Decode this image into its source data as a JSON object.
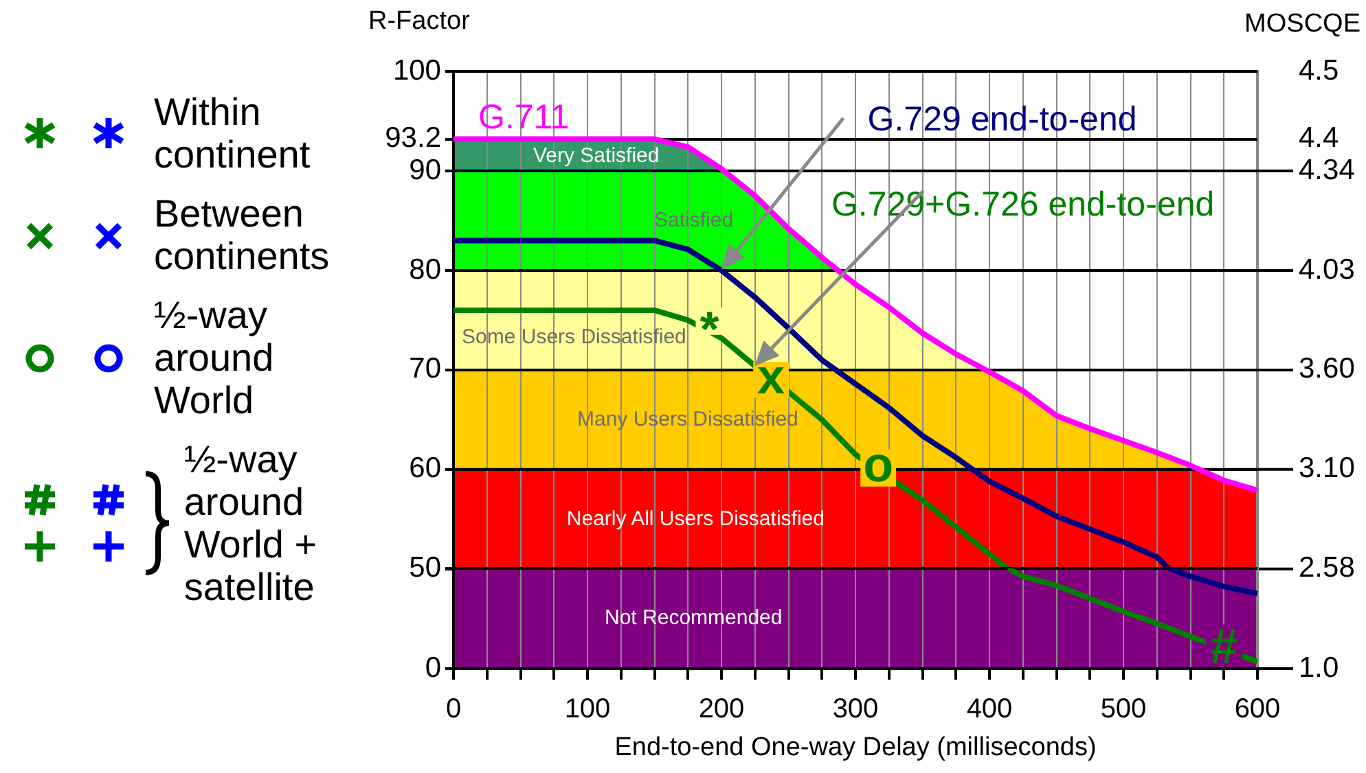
{
  "chart_data": [
    {
      "type": "line",
      "ylabel": "R-Factor",
      "y2label": "MOSCQE",
      "annotations": [
        "3.10",
        "3.60",
        "4.03",
        "4.34",
        "4.4",
        "4.5",
        "Within continent",
        "Between continents",
        "½-way around World",
        "½-way around World + satellite",
        {
          "text": "*",
          "x": 191,
          "y": 73.8
        },
        {
          "text": "x",
          "x": 237,
          "y": 69
        },
        {
          "text": "o",
          "x": 317,
          "y": 60.2
        }
      ],
      "xlim": [
        0,
        600
      ],
      "xticks": [
        0,
        25,
        50,
        75,
        100,
        125,
        150,
        175,
        200,
        225,
        250,
        275,
        300,
        325,
        350,
        375,
        400,
        425,
        450,
        475,
        500,
        525,
        550,
        575,
        600
      ],
      "ylim": [
        50,
        100
      ],
      "yticks": [
        {
          "value": 50,
          "label": null
        },
        60,
        70,
        80,
        90,
        93.2,
        100
      ],
      "tick_labels": "y",
      "grid": true,
      "bands": [
        {
          "axis": "y",
          "from": 90,
          "to": 93.2,
          "label": "Very Satisfied",
          "color": "#339966"
        },
        {
          "axis": "y",
          "from": 80,
          "to": 90,
          "label": "Satisfied",
          "color": "#00ff00"
        },
        {
          "axis": "y",
          "from": 70,
          "to": 80,
          "label": "Some Users Dissatisfied",
          "color": "#ffff99"
        },
        {
          "axis": "y",
          "from": 60,
          "to": 70,
          "label": "Many Users Dissatisfied",
          "color": "#ffcc00"
        },
        {
          "axis": "y",
          "from": 50,
          "to": 60,
          "label": "Nearly All Users Dissatisfied",
          "color": "#ff0000"
        }
      ],
      "series": [
        {
          "name": "G.711",
          "color": "#ff00ff",
          "x": [
            0,
            150,
            175,
            200,
            225,
            250,
            275,
            300,
            325,
            350,
            375,
            400,
            425,
            450,
            475,
            500,
            525,
            550,
            575,
            600
          ],
          "values": [
            93.2,
            93.2,
            92.4,
            90.2,
            87.5,
            84.2,
            81.3,
            78.6,
            76.3,
            73.7,
            71.6,
            69.8,
            67.9,
            65.4,
            64.1,
            62.9,
            61.7,
            60.4,
            58.9,
            57.9
          ]
        },
        {
          "name": "G.729 end-to-end",
          "color": "#000080",
          "x": [
            0,
            150,
            175,
            200,
            225,
            250,
            275,
            300,
            325,
            350,
            375,
            400,
            425,
            450,
            475,
            500,
            525,
            534
          ],
          "values": [
            83,
            83,
            82.1,
            80,
            77.3,
            74.2,
            71,
            68.6,
            66.2,
            63.4,
            61.2,
            58.8,
            57.1,
            55.3,
            54,
            52.7,
            51.2,
            50
          ]
        },
        {
          "name": "G.729+G.726 end-to-end",
          "color": "#008000",
          "x": [
            0,
            150,
            175,
            200,
            225,
            250,
            275,
            300,
            350,
            375,
            400,
            414
          ],
          "values": [
            76,
            76,
            75,
            73.2,
            70.4,
            67.8,
            65,
            61.5,
            56.9,
            54.2,
            51.5,
            50
          ]
        }
      ]
    },
    {
      "type": "line",
      "xlabel": "End-to-end One-way Delay (milliseconds)",
      "annotations": [
        "1.0",
        "2.58",
        {
          "text": "#",
          "x": 575,
          "y": 9.7
        }
      ],
      "xlim": [
        0,
        600
      ],
      "xticks": [
        0,
        {
          "value": 25,
          "label": null
        },
        {
          "value": 50,
          "label": null
        },
        {
          "value": 75,
          "label": null
        },
        100,
        {
          "value": 125,
          "label": null
        },
        {
          "value": 150,
          "label": null
        },
        {
          "value": 175,
          "label": null
        },
        200,
        {
          "value": 225,
          "label": null
        },
        {
          "value": 250,
          "label": null
        },
        {
          "value": 275,
          "label": null
        },
        300,
        {
          "value": 325,
          "label": null
        },
        {
          "value": 350,
          "label": null
        },
        {
          "value": 375,
          "label": null
        },
        400,
        {
          "value": 425,
          "label": null
        },
        {
          "value": 450,
          "label": null
        },
        {
          "value": 475,
          "label": null
        },
        500,
        {
          "value": 525,
          "label": null
        },
        {
          "value": 550,
          "label": null
        },
        {
          "value": 575,
          "label": null
        },
        600
      ],
      "ylim": [
        0,
        50
      ],
      "yticks": [
        0,
        50
      ],
      "grid": true,
      "bands": [
        {
          "axis": "y",
          "from": 0,
          "to": 50,
          "label": "Not Recommended",
          "color": "#800080"
        }
      ],
      "series": [
        {
          "color": "#000080",
          "x": [
            534,
            550,
            575,
            600
          ],
          "values": [
            50,
            46,
            41,
            37.5
          ]
        },
        {
          "color": "#008000",
          "x": [
            414,
            425,
            450,
            475,
            500,
            525,
            550,
            600
          ],
          "values": [
            50,
            46,
            41.5,
            35,
            28.5,
            22.5,
            16,
            3.5
          ]
        }
      ]
    }
  ]
}
